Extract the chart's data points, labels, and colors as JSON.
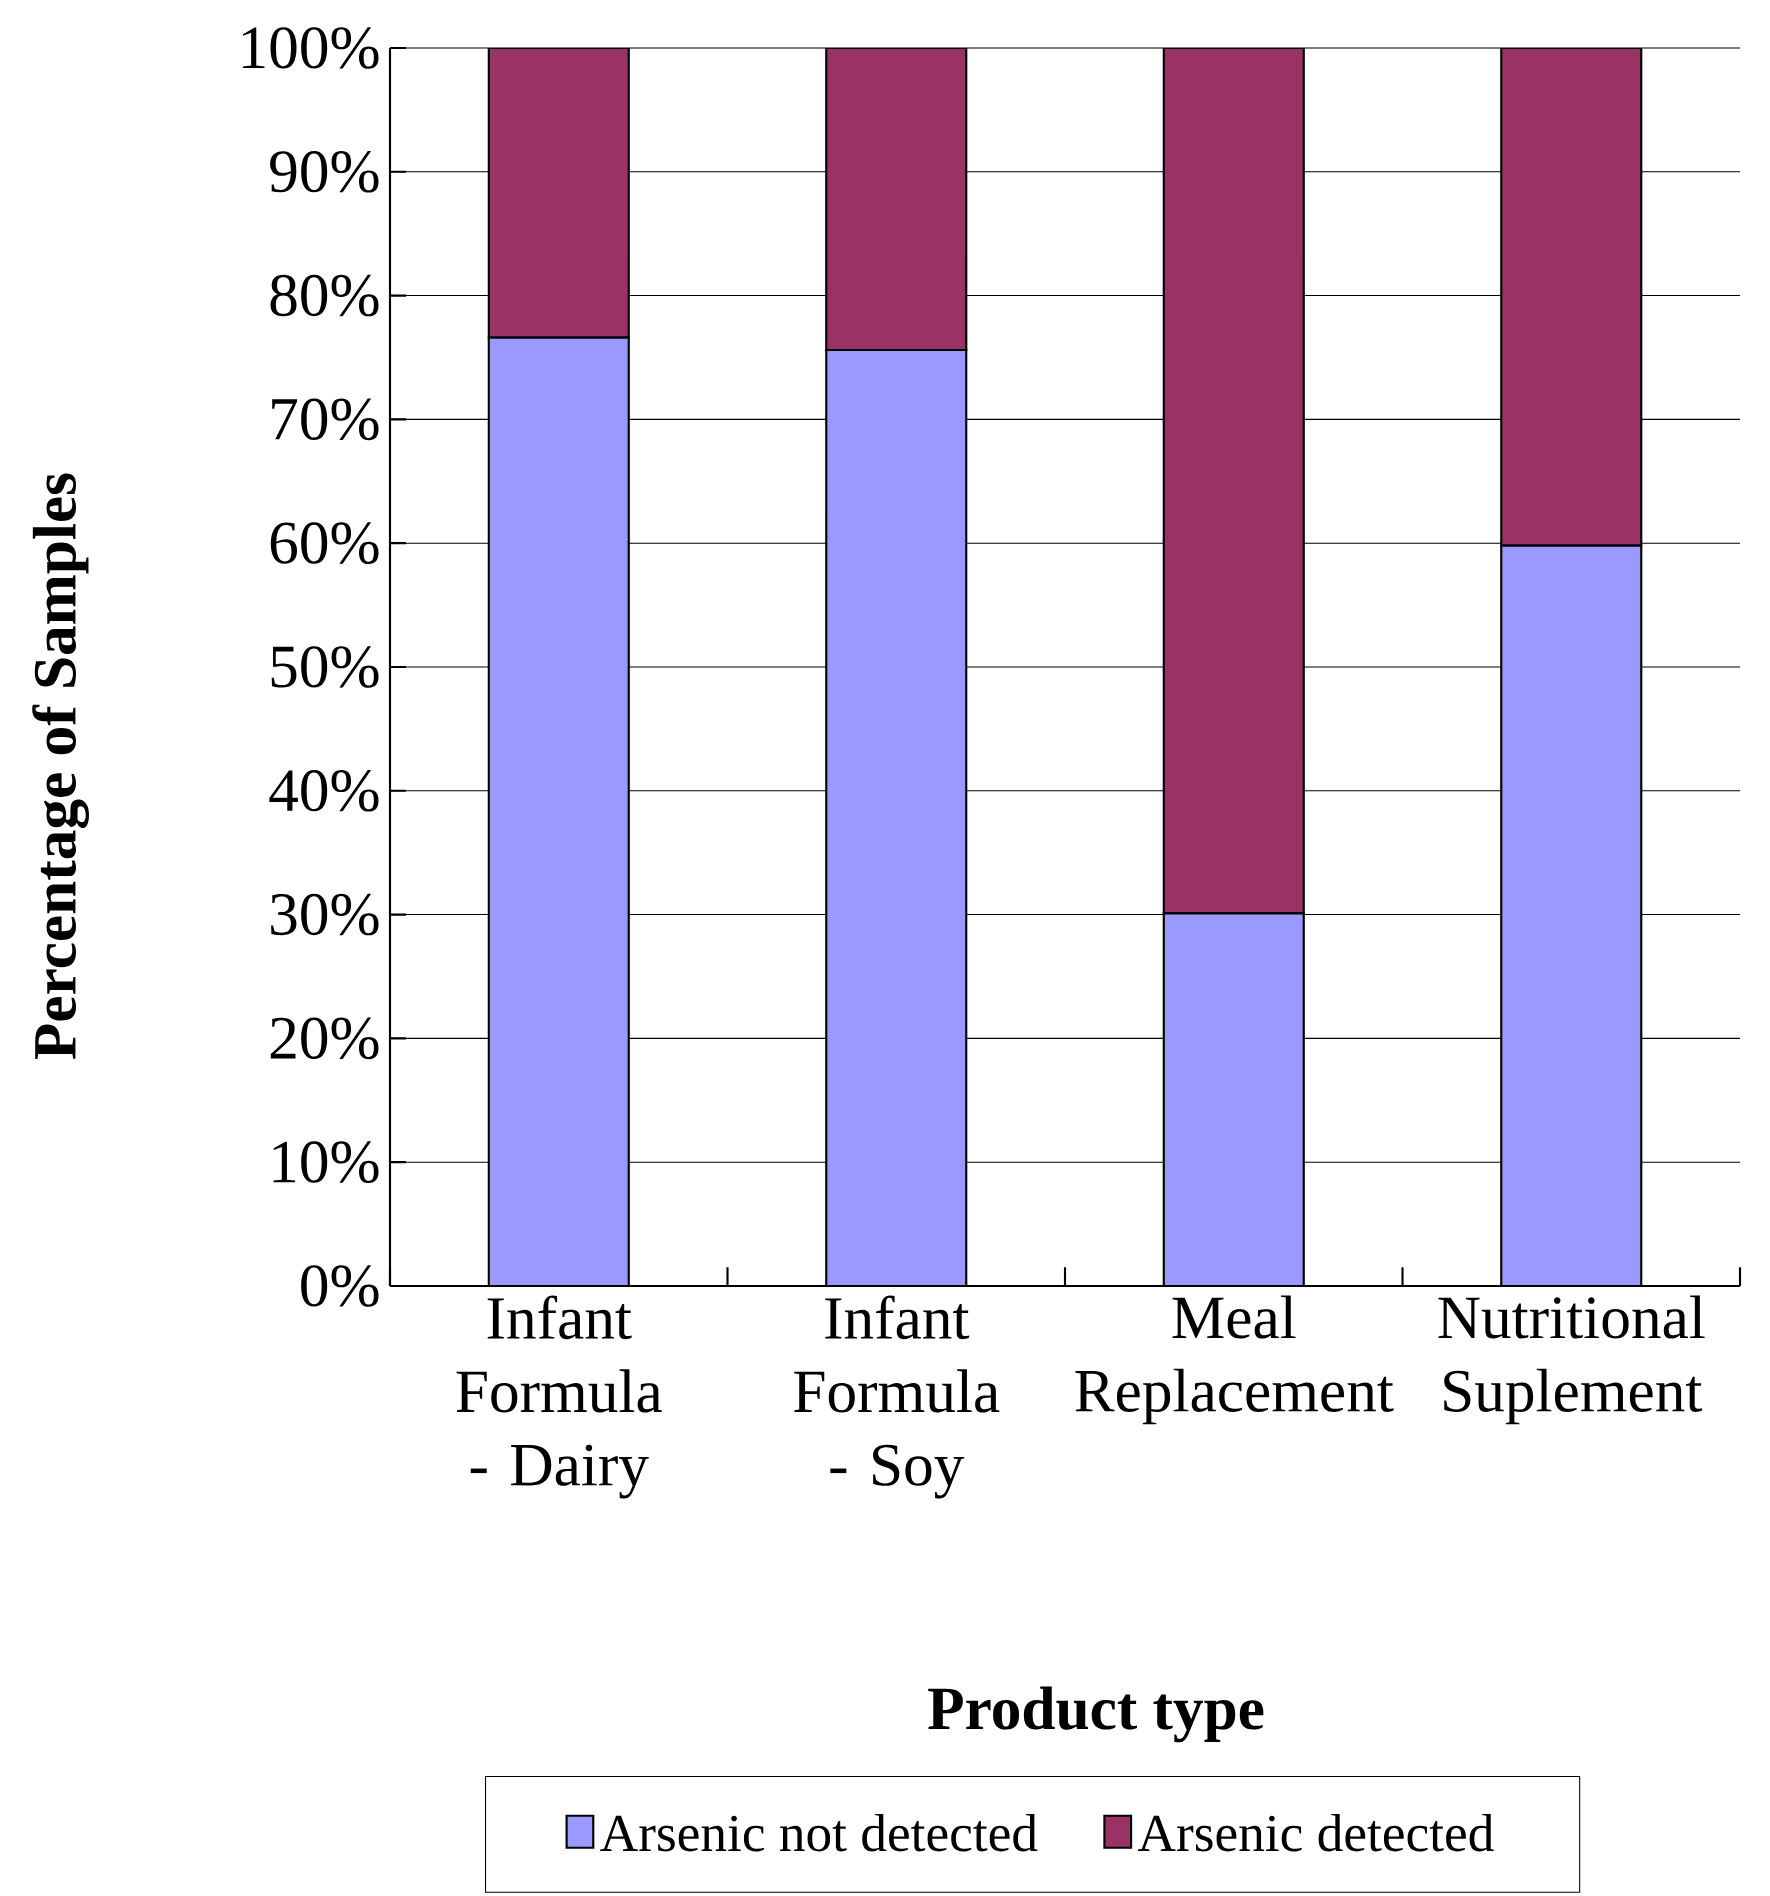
{
  "chart_data": {
    "type": "bar",
    "stacked": true,
    "xlabel": "Product type",
    "ylabel": "Percentage of Samples",
    "categories": [
      "Infant Formula - Dairy",
      "Infant Formula - Soy",
      "Meal Replacement",
      "Nutritional Suplement"
    ],
    "series": [
      {
        "name": "Arsenic not detected",
        "color": "#9999ff",
        "values": [
          76.6,
          75.6,
          30.1,
          59.8
        ]
      },
      {
        "name": "Arsenic detected",
        "color": "#993366",
        "values": [
          23.4,
          24.4,
          69.9,
          40.2
        ]
      }
    ],
    "ylim": [
      0,
      100
    ],
    "yticks": [
      {
        "value": 0,
        "label": "0%"
      },
      {
        "value": 10,
        "label": "10%"
      },
      {
        "value": 20,
        "label": "20%"
      },
      {
        "value": 30,
        "label": "30%"
      },
      {
        "value": 40,
        "label": "40%"
      },
      {
        "value": 50,
        "label": "50%"
      },
      {
        "value": 60,
        "label": "60%"
      },
      {
        "value": 70,
        "label": "70%"
      },
      {
        "value": 80,
        "label": "80%"
      },
      {
        "value": 90,
        "label": "90%"
      },
      {
        "value": 100,
        "label": "100%"
      }
    ],
    "grid": "y",
    "legend": "bottom"
  }
}
